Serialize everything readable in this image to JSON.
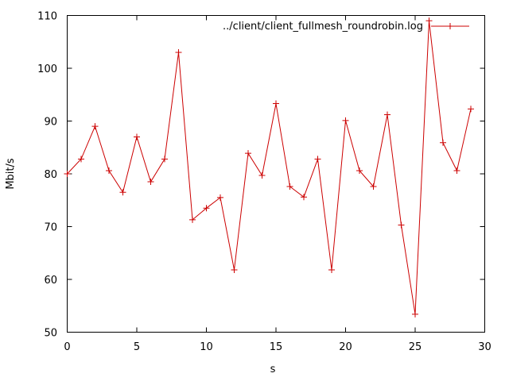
{
  "chart_data": {
    "type": "line",
    "xlabel": "s",
    "ylabel": "Mbit/s",
    "xlim": [
      0,
      30
    ],
    "ylim": [
      50,
      110
    ],
    "xticks": [
      0,
      5,
      10,
      15,
      20,
      25,
      30
    ],
    "yticks": [
      50,
      60,
      70,
      80,
      90,
      100,
      110
    ],
    "legend_position": "top-right",
    "grid": false,
    "series": [
      {
        "name": "../client/client_fullmesh_roundrobin.log",
        "color": "#cc0000",
        "marker": "plus",
        "x": [
          0,
          1,
          2,
          3,
          4,
          5,
          6,
          7,
          8,
          9,
          10,
          11,
          12,
          13,
          14,
          15,
          16,
          17,
          18,
          19,
          20,
          21,
          22,
          23,
          24,
          25,
          26,
          27,
          28,
          29
        ],
        "y": [
          80.0,
          82.8,
          89.0,
          80.6,
          76.5,
          87.0,
          78.5,
          82.8,
          103.0,
          71.3,
          73.5,
          75.5,
          61.8,
          83.9,
          79.7,
          93.3,
          77.6,
          75.6,
          82.8,
          61.8,
          90.1,
          80.6,
          77.6,
          91.2,
          70.3,
          53.4,
          109.0,
          85.9,
          80.6,
          92.3
        ]
      }
    ]
  }
}
